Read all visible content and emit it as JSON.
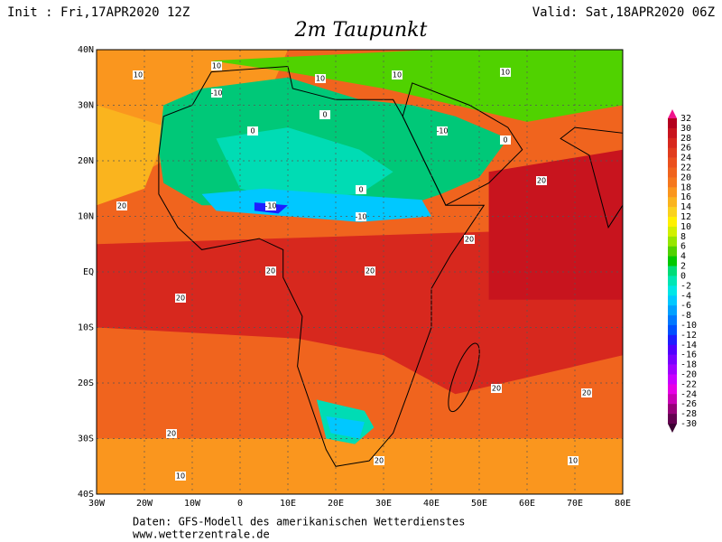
{
  "header": {
    "init": "Init : Fri,17APR2020 12Z",
    "valid": "Valid: Sat,18APR2020 06Z",
    "title": "2m Taupunkt"
  },
  "map": {
    "lat_labels": [
      "40N",
      "30N",
      "20N",
      "10N",
      "EQ",
      "10S",
      "20S",
      "30S",
      "40S"
    ],
    "lon_labels": [
      "30W",
      "20W",
      "10W",
      "0",
      "10E",
      "20E",
      "30E",
      "40E",
      "50E",
      "60E",
      "70E",
      "80E"
    ],
    "contour_labels": [
      "10",
      "10",
      "10",
      "10",
      "10",
      "-10",
      "-10",
      "-10",
      "-10",
      "0",
      "0",
      "0",
      "0",
      "20",
      "20",
      "20",
      "20",
      "20",
      "20",
      "20",
      "20",
      "20",
      "20",
      "10",
      "10"
    ]
  },
  "colorbar": {
    "labels": [
      "32",
      "30",
      "28",
      "26",
      "24",
      "22",
      "20",
      "18",
      "16",
      "14",
      "12",
      "10",
      "8",
      "6",
      "4",
      "2",
      "0",
      "-2",
      "-4",
      "-6",
      "-8",
      "-10",
      "-12",
      "-14",
      "-16",
      "-18",
      "-20",
      "-22",
      "-24",
      "-26",
      "-28",
      "-30"
    ],
    "colors": [
      "#b4001e",
      "#c8141e",
      "#d7281e",
      "#e13c1e",
      "#eb501e",
      "#f0641e",
      "#f5781e",
      "#fa961e",
      "#fab41e",
      "#fad21e",
      "#fff000",
      "#d2f000",
      "#96e600",
      "#50d200",
      "#00c800",
      "#00dc78",
      "#00e6b4",
      "#00e6e6",
      "#00c8ff",
      "#00a0ff",
      "#0078ff",
      "#0050ff",
      "#1e1eff",
      "#5000ff",
      "#7800ff",
      "#a000ff",
      "#c800ff",
      "#e600e6",
      "#c800b4",
      "#960078",
      "#640050"
    ]
  },
  "footer": {
    "line1": "Daten: GFS-Modell des amerikanischen Wetterdienstes",
    "line2": "www.wetterzentrale.de"
  }
}
